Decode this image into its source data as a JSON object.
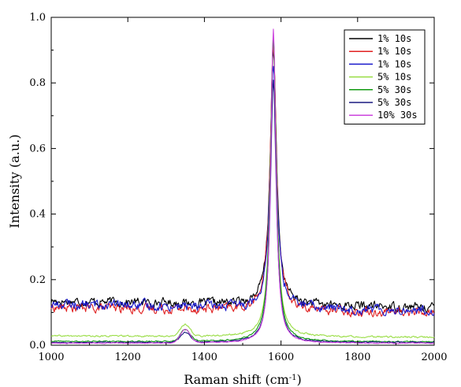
{
  "chart_data": {
    "type": "line",
    "title": "",
    "xlabel": "Raman shift (cm",
    "xlabel_sup": "-1",
    "xlabel_close": ")",
    "ylabel": "Intensity (a.u.)",
    "xlim": [
      1000,
      2000
    ],
    "ylim": [
      0.0,
      1.0
    ],
    "x_ticks": [
      1000,
      1200,
      1400,
      1600,
      1800,
      2000
    ],
    "x_tick_labels": [
      "1000",
      "1200",
      "1400",
      "1600",
      "1800",
      "2000"
    ],
    "y_ticks": [
      0.0,
      0.2,
      0.4,
      0.6,
      0.8,
      1.0
    ],
    "y_tick_labels": [
      "0.0",
      "0.2",
      "0.4",
      "0.6",
      "0.8",
      "1.0"
    ],
    "grid": false,
    "legend_position": "top-right",
    "series": [
      {
        "name": "1% 10s",
        "color": "#000000",
        "baseline_left": 0.135,
        "baseline_right": 0.115,
        "noise": 0.011,
        "d_peak": 0.0,
        "g_peak": 0.91,
        "g_center": 1580,
        "g_width": 10
      },
      {
        "name": "1% 10s",
        "color": "#e02020",
        "baseline_left": 0.115,
        "baseline_right": 0.1,
        "noise": 0.011,
        "d_peak": 0.0,
        "g_peak": 0.92,
        "g_center": 1580,
        "g_width": 10
      },
      {
        "name": "1% 10s",
        "color": "#1a1acc",
        "baseline_left": 0.125,
        "baseline_right": 0.105,
        "noise": 0.012,
        "d_peak": 0.0,
        "g_peak": 0.86,
        "g_center": 1580,
        "g_width": 10
      },
      {
        "name": "5% 10s",
        "color": "#99dd44",
        "baseline_left": 0.028,
        "baseline_right": 0.024,
        "noise": 0.002,
        "d_peak": 0.035,
        "g_peak": 0.94,
        "g_center": 1580,
        "g_width": 9
      },
      {
        "name": "5% 30s",
        "color": "#119911",
        "baseline_left": 0.012,
        "baseline_right": 0.01,
        "noise": 0.0015,
        "d_peak": 0.035,
        "g_peak": 0.94,
        "g_center": 1580,
        "g_width": 9
      },
      {
        "name": "5% 30s",
        "color": "#1a1a80",
        "baseline_left": 0.008,
        "baseline_right": 0.008,
        "noise": 0.0015,
        "d_peak": 0.03,
        "g_peak": 0.81,
        "g_center": 1580,
        "g_width": 9
      },
      {
        "name": "10% 30s",
        "color": "#cc44dd",
        "baseline_left": 0.006,
        "baseline_right": 0.006,
        "noise": 0.001,
        "d_peak": 0.042,
        "g_peak": 0.965,
        "g_center": 1580,
        "g_width": 8
      }
    ]
  }
}
